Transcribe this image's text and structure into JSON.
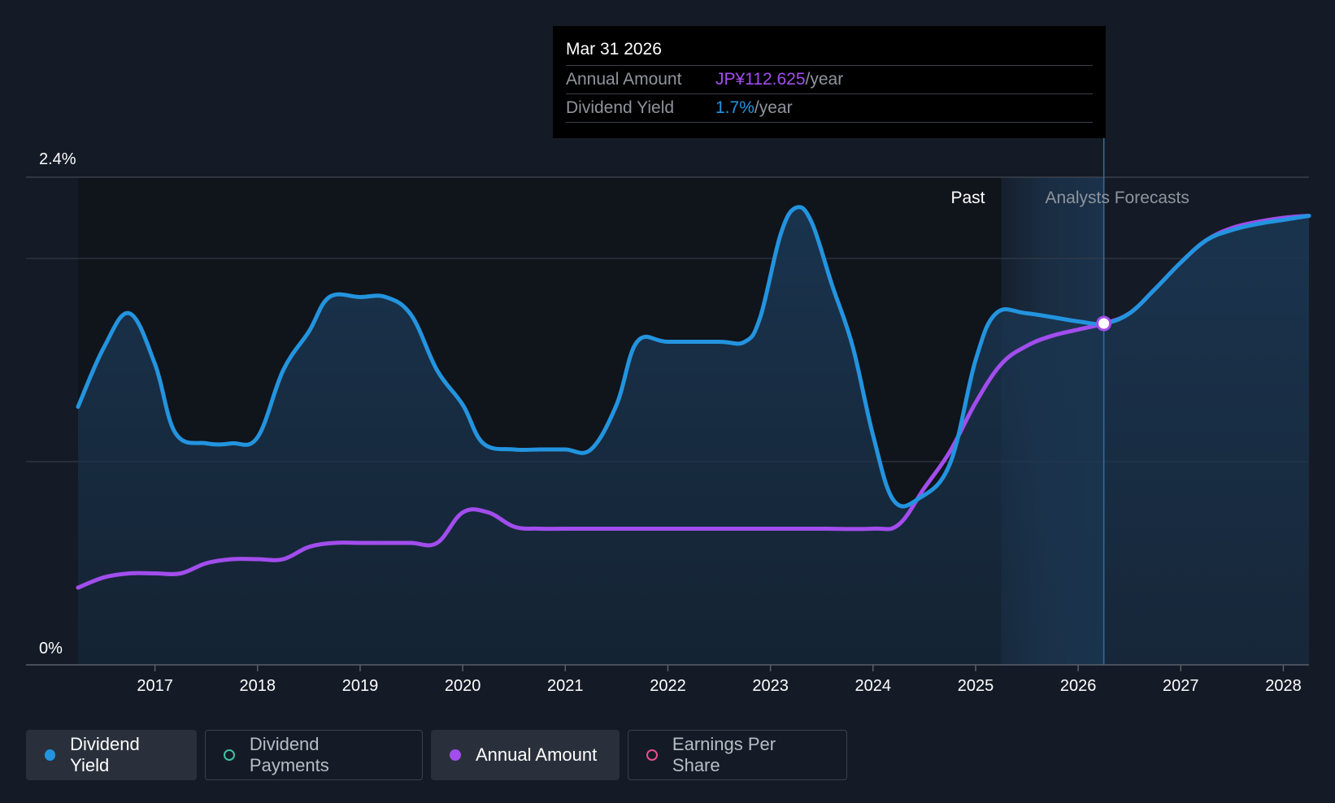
{
  "tooltip": {
    "date": "Mar 31 2026",
    "rows": [
      {
        "key": "Annual Amount",
        "value": "JP¥112.625",
        "unit": "/year",
        "color": "#a24ded"
      },
      {
        "key": "Dividend Yield",
        "value": "1.7%",
        "unit": "/year",
        "color": "#2394df"
      }
    ]
  },
  "legend": [
    {
      "label": "Dividend Yield",
      "color": "#2394df",
      "active": true,
      "icon": "filled-circle-icon"
    },
    {
      "label": "Dividend Payments",
      "color": "#3fc2a3",
      "active": false,
      "icon": "hollow-circle-icon"
    },
    {
      "label": "Annual Amount",
      "color": "#a24ded",
      "active": true,
      "icon": "filled-circle-icon"
    },
    {
      "label": "Earnings Per Share",
      "color": "#e84f8e",
      "active": false,
      "icon": "hollow-circle-icon"
    }
  ],
  "colors": {
    "background": "#151b26",
    "past_region": "#10141b",
    "forecast_region": "#1d3a57",
    "yield_line": "#2394df",
    "yield_fill": "#1a3550",
    "amount_line": "#a24ded",
    "grid": "#3a404b",
    "axis": "#5a606b"
  },
  "chart_data": {
    "type": "line",
    "ylim": [
      0,
      2.4
    ],
    "y_ticks": [
      "0%",
      "2.4%"
    ],
    "x_ticks": [
      "2017",
      "2018",
      "2019",
      "2020",
      "2021",
      "2022",
      "2023",
      "2024",
      "2025",
      "2026",
      "2027",
      "2028"
    ],
    "x_range": [
      2016.25,
      2028.25
    ],
    "grid": true,
    "regions": {
      "past_label": "Past",
      "forecast_label": "Analysts Forecasts",
      "forecast_start": 2025.25,
      "cursor": 2026.25
    },
    "series": [
      {
        "name": "Dividend Yield",
        "unit": "%",
        "x": [
          2016.25,
          2016.5,
          2016.75,
          2017.0,
          2017.2,
          2017.5,
          2017.75,
          2018.0,
          2018.25,
          2018.5,
          2018.7,
          2019.0,
          2019.25,
          2019.5,
          2019.75,
          2020.0,
          2020.2,
          2020.5,
          2020.75,
          2021.0,
          2021.25,
          2021.5,
          2021.7,
          2022.0,
          2022.5,
          2022.75,
          2022.9,
          2023.1,
          2023.25,
          2023.4,
          2023.6,
          2023.8,
          2024.0,
          2024.2,
          2024.45,
          2024.75,
          2025.0,
          2025.2,
          2025.5,
          2026.0,
          2026.25,
          2026.5,
          2026.75,
          2027.0,
          2027.25,
          2027.5,
          2027.75,
          2028.0,
          2028.25
        ],
        "values": [
          1.27,
          1.56,
          1.73,
          1.48,
          1.14,
          1.09,
          1.09,
          1.12,
          1.45,
          1.64,
          1.81,
          1.81,
          1.81,
          1.72,
          1.45,
          1.28,
          1.09,
          1.06,
          1.06,
          1.06,
          1.06,
          1.28,
          1.59,
          1.59,
          1.59,
          1.59,
          1.71,
          2.12,
          2.25,
          2.18,
          1.87,
          1.57,
          1.13,
          0.81,
          0.82,
          0.99,
          1.5,
          1.73,
          1.73,
          1.69,
          1.68,
          1.73,
          1.85,
          1.98,
          2.09,
          2.14,
          2.17,
          2.19,
          2.21
        ]
      },
      {
        "name": "Annual Amount",
        "unit": "JP¥",
        "x": [
          2016.25,
          2016.5,
          2016.75,
          2017.0,
          2017.25,
          2017.5,
          2017.75,
          2018.0,
          2018.25,
          2018.5,
          2018.75,
          2019.0,
          2019.25,
          2019.5,
          2019.75,
          2020.0,
          2020.25,
          2020.5,
          2020.75,
          2021.0,
          2021.5,
          2022.0,
          2022.5,
          2023.0,
          2023.5,
          2024.0,
          2024.25,
          2024.5,
          2024.75,
          2025.0,
          2025.25,
          2025.5,
          2025.75,
          2026.0,
          2026.25,
          2026.5,
          2026.75,
          2027.0,
          2027.25,
          2027.5,
          2027.75,
          2028.0,
          2028.25
        ],
        "values": [
          0.38,
          0.43,
          0.45,
          0.45,
          0.45,
          0.5,
          0.52,
          0.52,
          0.52,
          0.58,
          0.6,
          0.6,
          0.6,
          0.6,
          0.6,
          0.75,
          0.75,
          0.68,
          0.67,
          0.67,
          0.67,
          0.67,
          0.67,
          0.67,
          0.67,
          0.67,
          0.69,
          0.87,
          1.05,
          1.29,
          1.48,
          1.57,
          1.62,
          1.65,
          1.68,
          1.73,
          1.85,
          1.98,
          2.09,
          2.15,
          2.18,
          2.2,
          2.21
        ]
      }
    ]
  }
}
